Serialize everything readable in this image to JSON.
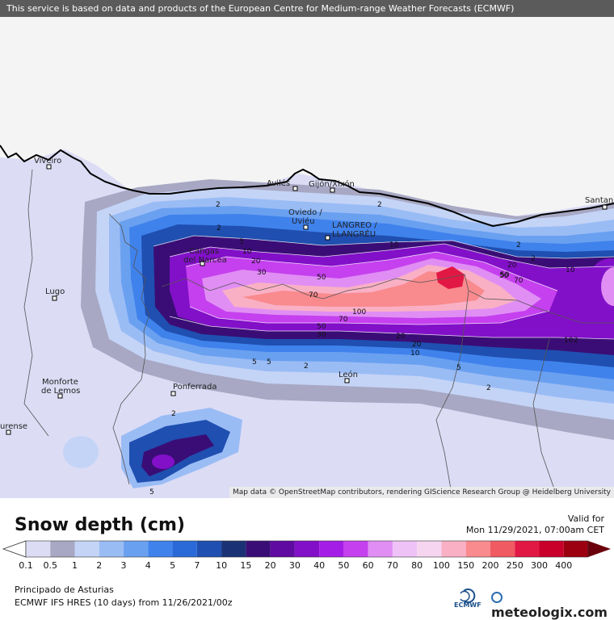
{
  "banner": "This service is based on data and products of the European Centre for Medium-range Weather Forecasts (ECMWF)",
  "attribution": "Map data © OpenStreetMap contributors, rendering GIScience Research Group @ Heidelberg University",
  "cities": [
    {
      "name": "Viveiro"
    },
    {
      "name": "Avilés"
    },
    {
      "name": "Gijón/Xixón"
    },
    {
      "name": "Santan"
    },
    {
      "name": "Oviedo /"
    },
    {
      "name": "Uviéu"
    },
    {
      "name": "LANGREO /"
    },
    {
      "name": "LLANGRÉU"
    },
    {
      "name": "Cangas"
    },
    {
      "name": "del Narcea"
    },
    {
      "name": "Lugo"
    },
    {
      "name": "Monforte"
    },
    {
      "name": "de Lemos"
    },
    {
      "name": "Ponferrada"
    },
    {
      "name": "León"
    },
    {
      "name": "urense"
    }
  ],
  "contour_labels": [
    "2",
    "2",
    "2",
    "5",
    "10",
    "20",
    "30",
    "50",
    "50",
    "70",
    "100",
    "70",
    "50",
    "30",
    "20",
    "10",
    "5",
    "2",
    "2",
    "10",
    "20",
    "50",
    "70",
    "2",
    "10",
    "20",
    "10",
    "5",
    "2",
    "5",
    "2",
    "5",
    "2"
  ],
  "legend": {
    "title": "Snow depth (cm)",
    "valid_for": "Valid for",
    "valid_date": "Mon 11/29/2021, 07:00am CET",
    "ticks": [
      "0.1",
      "0.5",
      "1",
      "2",
      "3",
      "4",
      "5",
      "7",
      "10",
      "15",
      "20",
      "30",
      "40",
      "50",
      "60",
      "70",
      "80",
      "100",
      "150",
      "200",
      "250",
      "300",
      "400"
    ],
    "colors": [
      "#dcdcf5",
      "#a8a8c4",
      "#c4d4f6",
      "#9abcf5",
      "#6aa0f0",
      "#3f82ec",
      "#2a6ad8",
      "#1f4fb0",
      "#1a3275",
      "#3a0d76",
      "#5f0aa0",
      "#8210c8",
      "#a41de6",
      "#c540ee",
      "#e08ef4",
      "#efc2f7",
      "#f6d5f0",
      "#f9b0c5",
      "#f98a8e",
      "#f05a62",
      "#e21844",
      "#c8002a",
      "#9c0010",
      "#6a000c"
    ]
  },
  "footer": {
    "region": "Principado de Asturias",
    "model": "ECMWF IFS HRES (10 days) from 11/26/2021/00z",
    "ecmwf": "ECMWF",
    "meteologix": "meteologix.com"
  }
}
